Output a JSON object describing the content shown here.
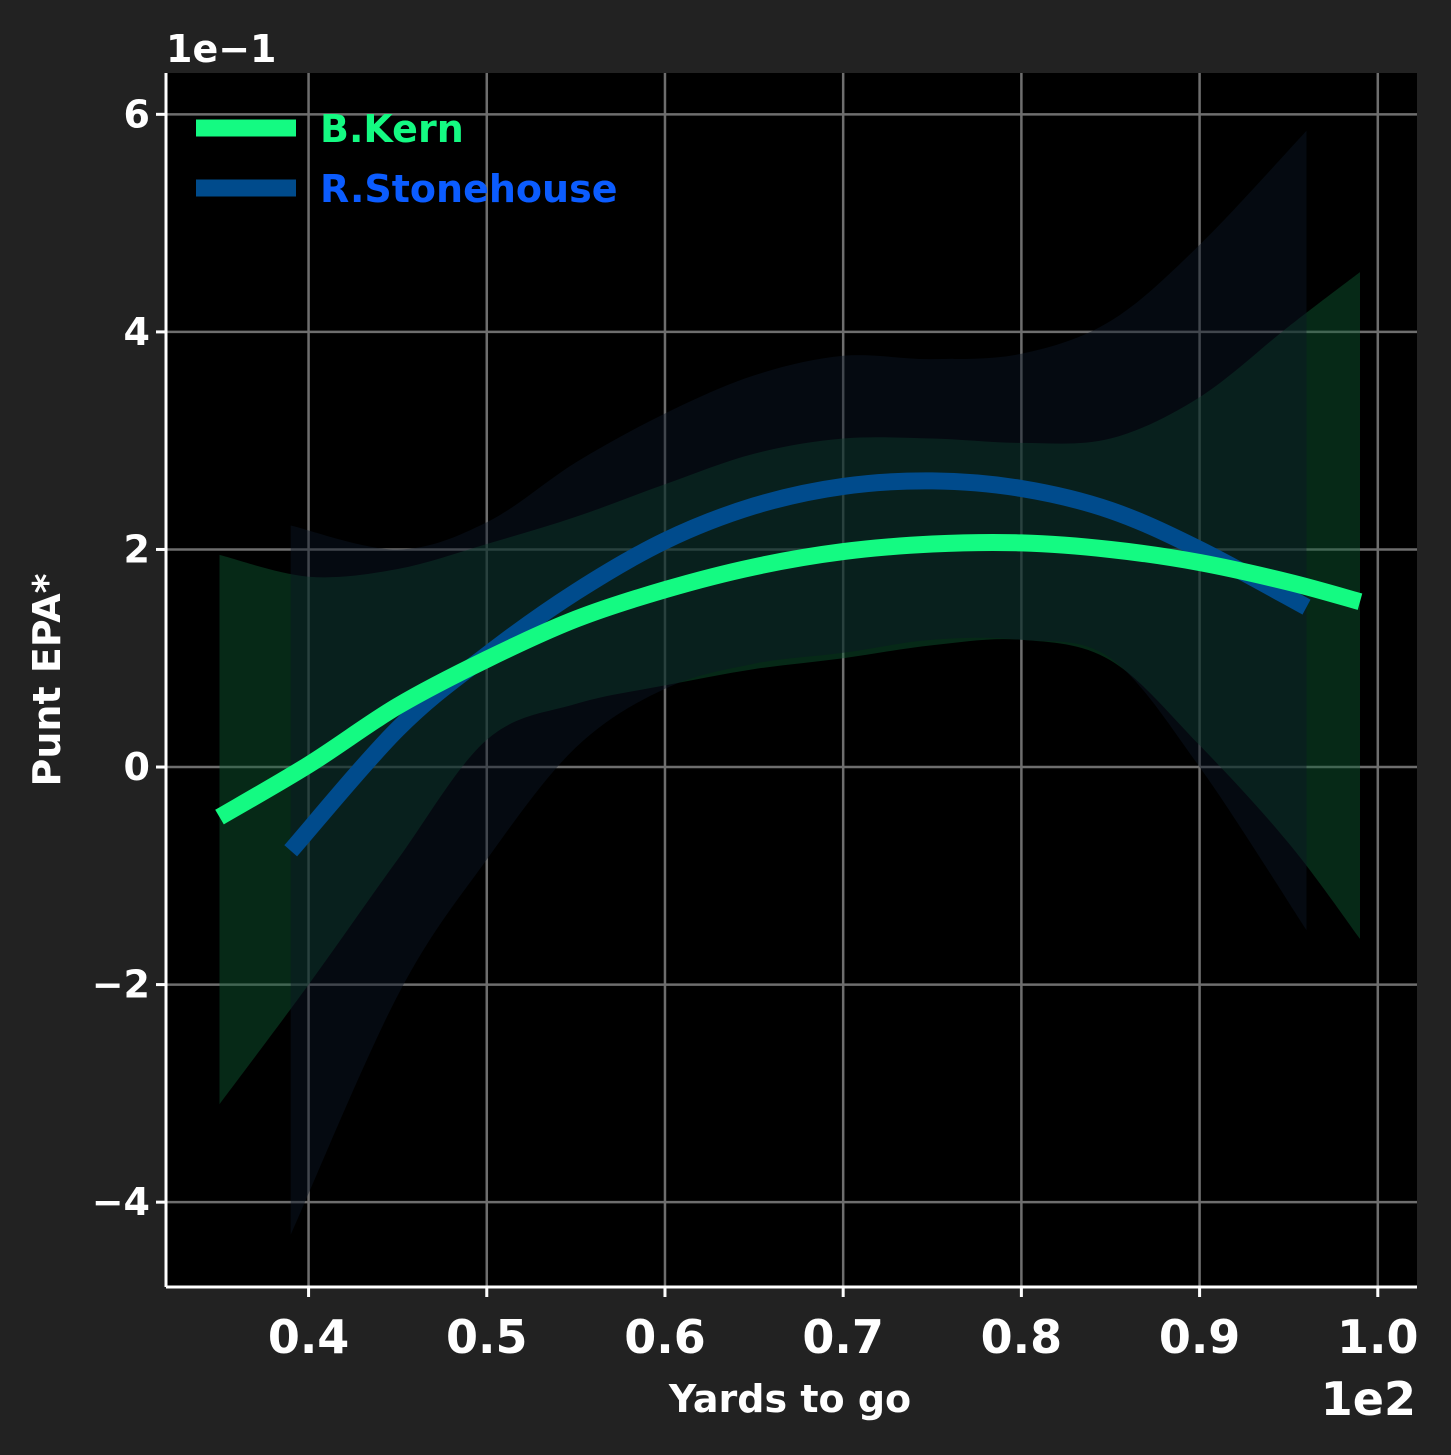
{
  "chart_data": {
    "type": "line",
    "xlabel": "Yards to go",
    "ylabel": "Punt EPA*",
    "x_offset_label": "1e2",
    "y_offset_label": "1e−1",
    "xlim": [
      32,
      102.2
    ],
    "ylim": [
      -0.478,
      0.638
    ],
    "x_ticks": [
      40,
      50,
      60,
      70,
      80,
      90,
      100
    ],
    "x_tick_labels": [
      "0.4",
      "0.5",
      "0.6",
      "0.7",
      "0.8",
      "0.9",
      "1.0"
    ],
    "y_ticks": [
      -0.4,
      -0.2,
      0.0,
      0.2,
      0.4,
      0.6
    ],
    "y_tick_labels": [
      "−4",
      "−2",
      "0",
      "2",
      "4",
      "6"
    ],
    "grid": true,
    "legend_position": "top-left",
    "series": [
      {
        "name": "B.Kern",
        "color": "#14fa82",
        "band_color": "#0e5a33",
        "x": [
          35,
          40,
          45,
          50,
          55,
          60,
          65,
          70,
          75,
          80,
          85,
          90,
          95,
          99
        ],
        "y": [
          -0.046,
          0.002,
          0.056,
          0.099,
          0.136,
          0.163,
          0.184,
          0.198,
          0.205,
          0.206,
          0.2,
          0.188,
          0.17,
          0.152
        ],
        "lower": [
          -0.31,
          -0.2,
          -0.085,
          0.025,
          0.058,
          0.075,
          0.09,
          0.1,
          0.112,
          0.117,
          0.098,
          0.02,
          -0.07,
          -0.158
        ],
        "upper": [
          0.195,
          0.175,
          0.182,
          0.205,
          0.23,
          0.26,
          0.288,
          0.302,
          0.302,
          0.298,
          0.302,
          0.34,
          0.405,
          0.455
        ]
      },
      {
        "name": "R.Stonehouse",
        "color": "#004b8c",
        "text_color": "#0b5cff",
        "band_color": "#0a1626",
        "x": [
          39,
          45,
          50,
          55,
          60,
          65,
          70,
          75,
          80,
          85,
          90,
          96
        ],
        "y": [
          -0.077,
          0.035,
          0.103,
          0.161,
          0.208,
          0.24,
          0.258,
          0.263,
          0.256,
          0.236,
          0.2,
          0.147
        ],
        "lower": [
          -0.43,
          -0.21,
          -0.085,
          0.018,
          0.072,
          0.095,
          0.105,
          0.117,
          0.117,
          0.1,
          0.0,
          -0.15
        ],
        "upper": [
          0.222,
          0.2,
          0.225,
          0.28,
          0.325,
          0.36,
          0.378,
          0.375,
          0.38,
          0.41,
          0.48,
          0.585
        ]
      }
    ]
  }
}
